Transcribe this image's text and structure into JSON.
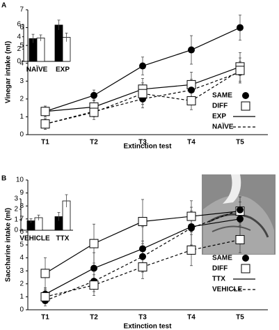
{
  "chart_data": [
    {
      "type": "line",
      "panel": "A",
      "xlabel": "Extinction test",
      "ylabel": "Vinegar intake (ml)",
      "categories": [
        "T1",
        "T2",
        "T3",
        "T4",
        "T5"
      ],
      "ylim": [
        0,
        7
      ],
      "yticks": [
        0,
        1,
        2,
        3,
        4,
        5,
        6,
        7
      ],
      "legend": [
        {
          "label": "SAME",
          "marker": "circle"
        },
        {
          "label": "DIFF",
          "marker": "square"
        },
        {
          "label": "EXP",
          "marker": "solid"
        },
        {
          "label": "NAÏVE",
          "marker": "dashed"
        }
      ],
      "series": [
        {
          "marker": "circle",
          "line": "solid",
          "color": "#000",
          "values": [
            1.3,
            2.2,
            3.85,
            4.75,
            6.0
          ],
          "errors": [
            0.3,
            0.3,
            0.5,
            0.8,
            0.7
          ]
        },
        {
          "marker": "square",
          "line": "solid",
          "color": "#000",
          "values": [
            1.3,
            1.55,
            2.55,
            2.8,
            3.8
          ],
          "errors": [
            0.3,
            0.4,
            0.6,
            0.7,
            0.8
          ]
        },
        {
          "marker": "circle",
          "line": "dashed",
          "color": "#000",
          "values": [
            0.6,
            1.3,
            2.0,
            2.5,
            3.5
          ],
          "errors": [
            0.3,
            0.3,
            0.5,
            0.6,
            0.6
          ]
        },
        {
          "marker": "square",
          "line": "dashed",
          "color": "#000",
          "values": [
            0.6,
            1.25,
            2.3,
            1.9,
            3.6
          ],
          "errors": [
            0.3,
            0.4,
            0.6,
            0.5,
            0.7
          ]
        }
      ]
    },
    {
      "type": "bar",
      "categories": [
        "NAÏVE",
        "EXP"
      ],
      "ylim": [
        0,
        6
      ],
      "yticks": [
        0,
        2,
        4,
        6
      ],
      "series": [
        {
          "color": "#000",
          "values": [
            3.7,
            5.9
          ],
          "errors": [
            0.7,
            0.8
          ]
        },
        {
          "color": "#fff",
          "values": [
            3.8,
            3.9
          ],
          "errors": [
            0.5,
            0.7
          ]
        }
      ]
    },
    {
      "type": "line",
      "panel": "B",
      "xlabel": "Extinction test",
      "ylabel": "Saccharine intake (ml)",
      "categories": [
        "T1",
        "T2",
        "T3",
        "T4",
        "T5"
      ],
      "ylim": [
        0,
        10
      ],
      "yticks": [
        0,
        1,
        2,
        3,
        4,
        5,
        6,
        7,
        8,
        9,
        10
      ],
      "legend": [
        {
          "label": "SAME",
          "marker": "circle"
        },
        {
          "label": "DIFF",
          "marker": "square"
        },
        {
          "label": "TTX",
          "marker": "solid"
        },
        {
          "label": "VEHICLE",
          "marker": "dashed"
        }
      ],
      "series": [
        {
          "marker": "circle",
          "line": "solid",
          "color": "#000",
          "values": [
            1.2,
            3.2,
            4.7,
            6.4,
            7.0
          ],
          "errors": [
            0.5,
            1.2,
            1.7,
            1.5,
            1.3
          ]
        },
        {
          "marker": "square",
          "line": "solid",
          "color": "#000",
          "values": [
            2.8,
            5.1,
            6.8,
            7.2,
            7.6
          ],
          "errors": [
            1.2,
            1.5,
            1.7,
            1.2,
            1.1
          ]
        },
        {
          "marker": "circle",
          "line": "dashed",
          "color": "#000",
          "values": [
            0.7,
            2.2,
            4.1,
            6.3,
            7.7
          ],
          "errors": [
            0.4,
            0.8,
            1.2,
            1.3,
            1.0
          ]
        },
        {
          "marker": "square",
          "line": "dashed",
          "color": "#000",
          "values": [
            1.0,
            1.9,
            3.3,
            4.6,
            5.4
          ],
          "errors": [
            0.5,
            0.8,
            0.9,
            1.2,
            1.0
          ]
        }
      ]
    },
    {
      "type": "bar",
      "categories": [
        "VEHICLE",
        "TTX"
      ],
      "ylim": [
        0,
        3
      ],
      "yticks": [
        0,
        1,
        2,
        3
      ],
      "series": [
        {
          "color": "#000",
          "values": [
            0.9,
            1.3
          ],
          "errors": [
            0.2,
            0.4
          ]
        },
        {
          "color": "#fff",
          "values": [
            1.2,
            2.8
          ],
          "errors": [
            0.25,
            0.6
          ]
        }
      ]
    }
  ]
}
